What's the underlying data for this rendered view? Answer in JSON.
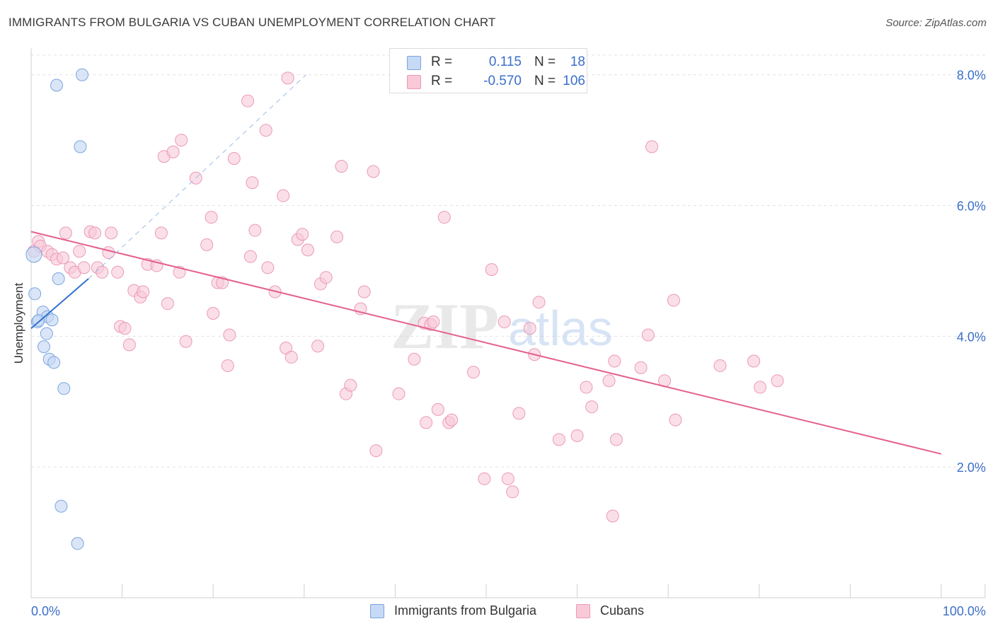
{
  "title": "IMMIGRANTS FROM BULGARIA VS CUBAN UNEMPLOYMENT CORRELATION CHART",
  "source": "Source: ZipAtlas.com",
  "watermark": {
    "zip": "ZIP",
    "atlas": "atlas"
  },
  "legend_top": {
    "rows": [
      {
        "r_label": "R =",
        "r_value": "0.115",
        "n_label": "N =",
        "n_value": "18"
      },
      {
        "r_label": "R =",
        "r_value": "-0.570",
        "n_label": "N =",
        "n_value": "106"
      }
    ]
  },
  "legend_bottom": {
    "bulgaria": "Immigrants from Bulgaria",
    "cubans": "Cubans"
  },
  "colors": {
    "bulgaria_fill": "#c6d9f5",
    "bulgaria_stroke": "#7aa5e0",
    "bulgaria_line": "#2f72d0",
    "cuban_fill": "#f9c9d8",
    "cuban_stroke": "#eb9ab5",
    "cuban_line": "#e4608e",
    "tick_label": "#3b6fc9",
    "grid": "#e3e3e3"
  },
  "chart_data": {
    "type": "scatter",
    "title": "IMMIGRANTS FROM BULGARIA VS CUBAN UNEMPLOYMENT CORRELATION CHART",
    "xlabel": "",
    "ylabel": "Unemployment",
    "xlim": [
      0,
      100
    ],
    "ylim": [
      0,
      8.3
    ],
    "x_tick_labels": [
      "0.0%",
      "100.0%"
    ],
    "y_ticks": [
      2,
      4,
      6,
      8
    ],
    "y_tick_labels": [
      "2.0%",
      "4.0%",
      "6.0%",
      "8.0%"
    ],
    "grid": true,
    "series": [
      {
        "name": "Immigrants from Bulgaria",
        "r": 0.115,
        "n": 18,
        "points": [
          [
            5.6,
            8.0
          ],
          [
            2.8,
            7.84
          ],
          [
            5.4,
            6.9
          ],
          [
            0.3,
            5.25
          ],
          [
            3.0,
            4.88
          ],
          [
            0.4,
            4.65
          ],
          [
            1.3,
            4.37
          ],
          [
            1.8,
            4.3
          ],
          [
            0.7,
            4.22
          ],
          [
            2.3,
            4.25
          ],
          [
            1.7,
            4.04
          ],
          [
            1.4,
            3.84
          ],
          [
            2.0,
            3.65
          ],
          [
            2.5,
            3.6
          ],
          [
            3.6,
            3.2
          ],
          [
            3.3,
            1.4
          ],
          [
            5.1,
            0.83
          ],
          [
            0.8,
            4.24
          ]
        ],
        "trend_solid": [
          [
            0.0,
            4.12
          ],
          [
            6.3,
            4.88
          ]
        ],
        "trend_dashed": [
          [
            6.3,
            4.88
          ],
          [
            30.2,
            8.0
          ]
        ]
      },
      {
        "name": "Cubans",
        "r": -0.57,
        "n": 106,
        "points": [
          [
            0.3,
            5.3
          ],
          [
            0.8,
            5.45
          ],
          [
            1.0,
            5.38
          ],
          [
            1.8,
            5.3
          ],
          [
            2.3,
            5.25
          ],
          [
            2.8,
            5.18
          ],
          [
            3.5,
            5.2
          ],
          [
            3.8,
            5.58
          ],
          [
            4.3,
            5.05
          ],
          [
            4.8,
            4.98
          ],
          [
            5.3,
            5.3
          ],
          [
            5.8,
            5.05
          ],
          [
            6.5,
            5.6
          ],
          [
            7.0,
            5.58
          ],
          [
            7.3,
            5.05
          ],
          [
            7.8,
            4.98
          ],
          [
            8.5,
            5.28
          ],
          [
            8.8,
            5.58
          ],
          [
            9.5,
            4.98
          ],
          [
            9.8,
            4.15
          ],
          [
            10.3,
            4.12
          ],
          [
            10.8,
            3.87
          ],
          [
            11.3,
            4.7
          ],
          [
            12.0,
            4.6
          ],
          [
            12.3,
            4.68
          ],
          [
            12.8,
            5.1
          ],
          [
            13.8,
            5.08
          ],
          [
            14.3,
            5.58
          ],
          [
            15.0,
            4.5
          ],
          [
            14.6,
            6.75
          ],
          [
            15.6,
            6.82
          ],
          [
            16.5,
            7.0
          ],
          [
            16.3,
            4.98
          ],
          [
            17.0,
            3.92
          ],
          [
            18.1,
            6.42
          ],
          [
            19.3,
            5.4
          ],
          [
            19.8,
            5.82
          ],
          [
            20.0,
            4.35
          ],
          [
            20.5,
            4.82
          ],
          [
            21.0,
            4.82
          ],
          [
            21.6,
            3.55
          ],
          [
            21.8,
            4.02
          ],
          [
            22.3,
            6.72
          ],
          [
            23.8,
            7.6
          ],
          [
            24.1,
            5.22
          ],
          [
            24.6,
            5.62
          ],
          [
            24.3,
            6.35
          ],
          [
            25.8,
            7.15
          ],
          [
            26.0,
            5.05
          ],
          [
            26.8,
            4.68
          ],
          [
            27.7,
            6.15
          ],
          [
            28.0,
            3.82
          ],
          [
            28.6,
            3.68
          ],
          [
            29.3,
            5.48
          ],
          [
            29.8,
            5.56
          ],
          [
            30.4,
            5.32
          ],
          [
            31.5,
            3.85
          ],
          [
            31.8,
            4.8
          ],
          [
            32.4,
            4.9
          ],
          [
            33.6,
            5.52
          ],
          [
            34.1,
            6.6
          ],
          [
            34.6,
            3.12
          ],
          [
            35.1,
            3.25
          ],
          [
            36.2,
            4.42
          ],
          [
            36.6,
            4.68
          ],
          [
            37.6,
            6.52
          ],
          [
            37.9,
            2.25
          ],
          [
            40.4,
            3.12
          ],
          [
            42.1,
            3.65
          ],
          [
            43.2,
            4.2
          ],
          [
            43.4,
            2.68
          ],
          [
            43.9,
            4.18
          ],
          [
            44.2,
            4.22
          ],
          [
            44.7,
            2.88
          ],
          [
            45.4,
            5.82
          ],
          [
            45.9,
            2.68
          ],
          [
            46.2,
            2.72
          ],
          [
            48.6,
            3.45
          ],
          [
            50.6,
            5.02
          ],
          [
            49.8,
            1.82
          ],
          [
            52.0,
            4.22
          ],
          [
            52.4,
            1.82
          ],
          [
            52.9,
            1.62
          ],
          [
            53.6,
            2.82
          ],
          [
            54.8,
            4.12
          ],
          [
            55.3,
            3.72
          ],
          [
            55.8,
            4.52
          ],
          [
            58.0,
            2.42
          ],
          [
            60.0,
            2.48
          ],
          [
            61.0,
            3.22
          ],
          [
            61.6,
            2.92
          ],
          [
            63.5,
            3.32
          ],
          [
            64.1,
            3.62
          ],
          [
            64.3,
            2.42
          ],
          [
            63.9,
            1.25
          ],
          [
            67.0,
            3.52
          ],
          [
            67.8,
            4.02
          ],
          [
            68.2,
            6.9
          ],
          [
            69.6,
            3.32
          ],
          [
            70.8,
            2.72
          ],
          [
            70.6,
            4.55
          ],
          [
            75.7,
            3.55
          ],
          [
            79.4,
            3.62
          ],
          [
            80.1,
            3.22
          ],
          [
            82.0,
            3.32
          ],
          [
            28.2,
            7.95
          ]
        ],
        "trend": [
          [
            0.0,
            5.6
          ],
          [
            100.0,
            2.2
          ]
        ]
      }
    ]
  }
}
